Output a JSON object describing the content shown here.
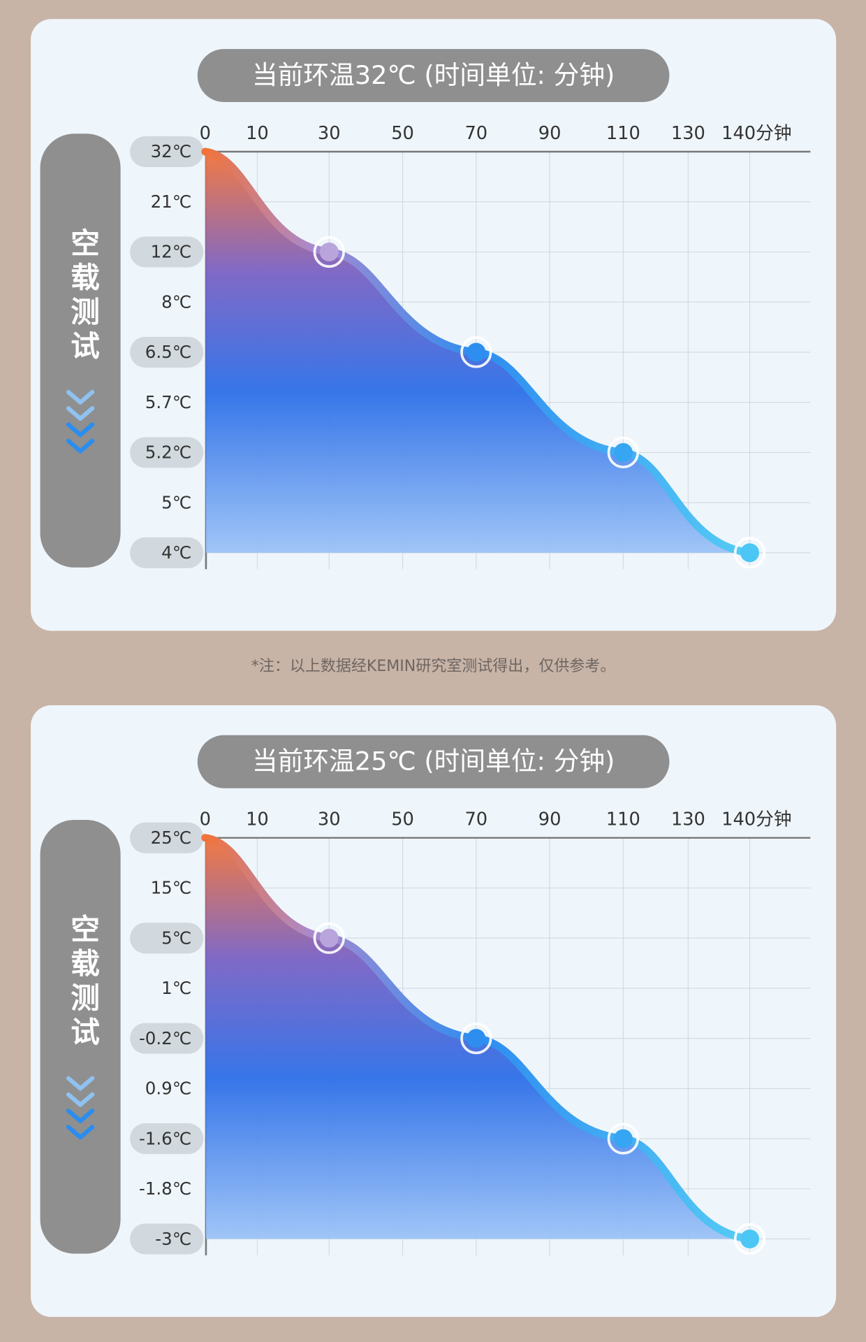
{
  "panels": [
    {
      "title": "当前环温32℃ (时间单位: 分钟)",
      "side_label": "空载测试",
      "x_labels": [
        "0",
        "10",
        "30",
        "50",
        "70",
        "90",
        "110",
        "130",
        "140分钟"
      ],
      "y_labels": [
        "32℃",
        "21℃",
        "12℃",
        "8℃",
        "6.5℃",
        "5.7℃",
        "5.2℃",
        "5℃",
        "4℃"
      ]
    },
    {
      "title": "当前环温25℃ (时间单位: 分钟)",
      "side_label": "空载测试",
      "x_labels": [
        "0",
        "10",
        "30",
        "50",
        "70",
        "90",
        "110",
        "130",
        "140分钟"
      ],
      "y_labels": [
        "25℃",
        "15℃",
        "5℃",
        "1℃",
        "-0.2℃",
        "0.9℃",
        "-1.6℃",
        "-1.8℃",
        "-3℃"
      ]
    }
  ],
  "note": "*注：以上数据经KEMIN研究室测试得出，仅供参考。"
}
